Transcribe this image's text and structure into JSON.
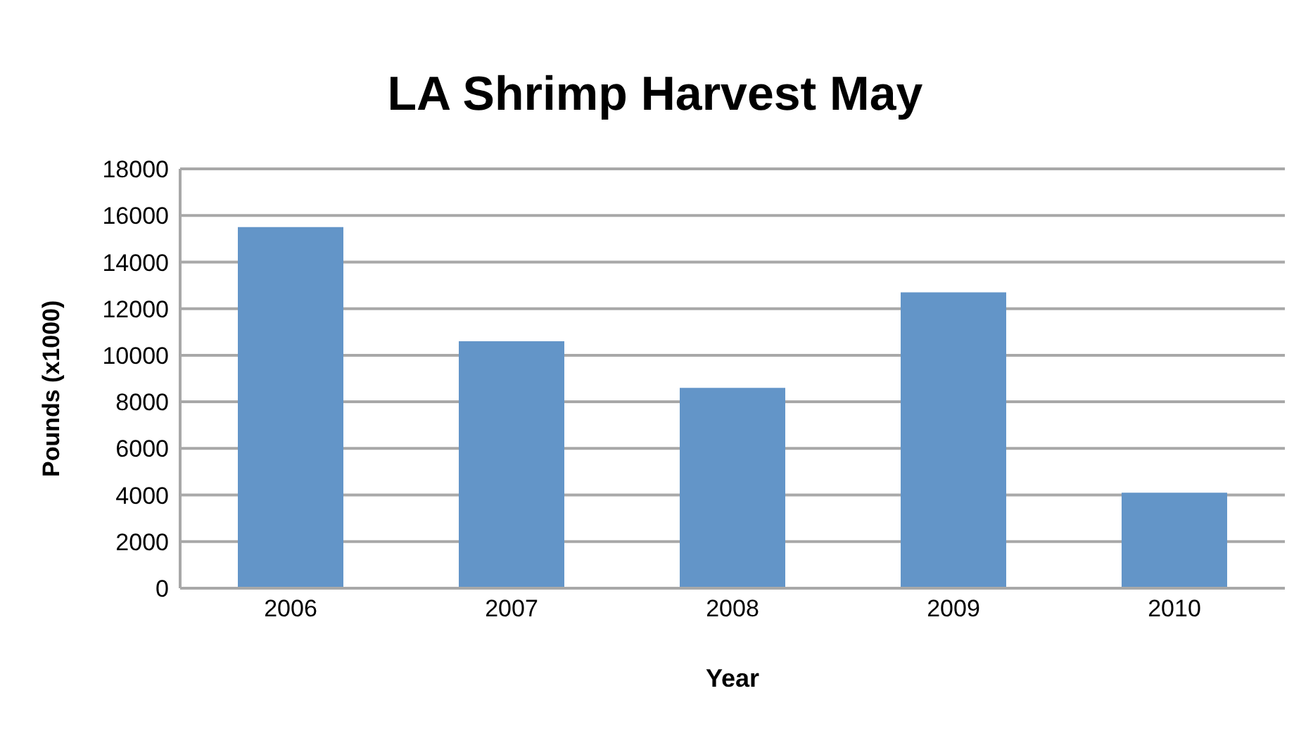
{
  "chart_data": {
    "type": "bar",
    "title": "LA Shrimp Harvest May",
    "xlabel": "Year",
    "ylabel": "Pounds (x1000)",
    "categories": [
      "2006",
      "2007",
      "2008",
      "2009",
      "2010"
    ],
    "values": [
      15500,
      10600,
      8600,
      12700,
      4100
    ],
    "color": "#6395c8",
    "ylim": [
      0,
      18000
    ],
    "yticks": [
      0,
      2000,
      4000,
      6000,
      8000,
      10000,
      12000,
      14000,
      16000,
      18000
    ],
    "grid": "y"
  }
}
